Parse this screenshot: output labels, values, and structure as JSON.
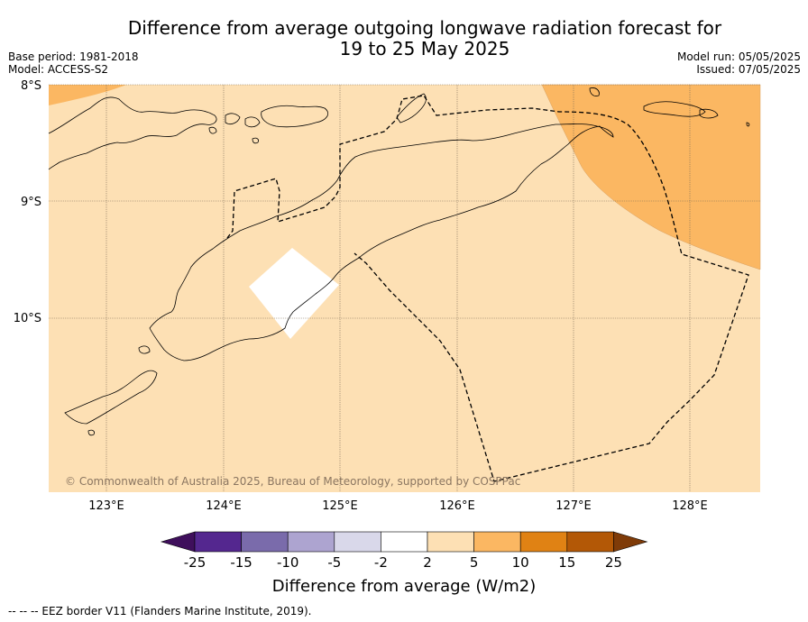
{
  "title_line1": "Difference from average outgoing longwave radiation forecast for",
  "title_line2": "19 to 25 May 2025",
  "base_period": "Base period: 1981-2018",
  "model": "Model: ACCESS-S2",
  "model_run": "Model run: 05/05/2025",
  "issued": "Issued: 07/05/2025",
  "lat_labels": [
    "8°S",
    "9°S",
    "10°S"
  ],
  "lon_labels": [
    "123°E",
    "124°E",
    "125°E",
    "126°E",
    "127°E",
    "128°E"
  ],
  "copyright": "© Commonwealth of Australia 2025, Bureau of Meteorology, supported by COSPPac",
  "colorbar": {
    "title": "Difference from average (W/m2)",
    "tick_labels": [
      "-25",
      "-15",
      "-10",
      "-5",
      "-2",
      "2",
      "5",
      "10",
      "15",
      "25"
    ],
    "colors": [
      "#3f0f5c",
      "#54278f",
      "#7a6bab",
      "#ada4d0",
      "#d9d8ea",
      "#ffffff",
      "#fde0b4",
      "#fbb762",
      "#e08214",
      "#b35806",
      "#7f3b08"
    ]
  },
  "footnote": "--  --  -- EEZ border V11 (Flanders Marine Institute, 2019).",
  "map_colors": {
    "background_class": "#fde0b4",
    "upper_class": "#fbb762",
    "neutral_class": "#ffffff"
  }
}
